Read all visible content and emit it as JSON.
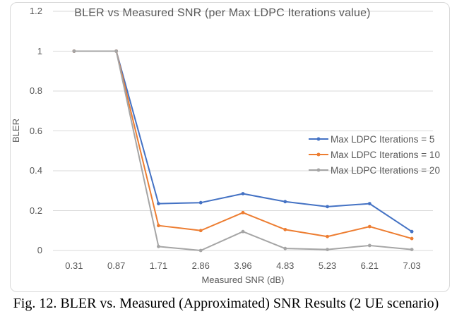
{
  "figure": {
    "caption": "Fig. 12. BLER vs. Measured (Approximated) SNR Results (2 UE scenario)"
  },
  "chart_data": {
    "type": "line",
    "title": "BLER vs Measured SNR (per Max LDPC Iterations value)",
    "xlabel": "Measured SNR (dB)",
    "ylabel": "BLER",
    "categories": [
      "0.31",
      "0.87",
      "1.71",
      "2.86",
      "3.96",
      "4.83",
      "5.23",
      "6.21",
      "7.03"
    ],
    "series": [
      {
        "name": "Max LDPC Iterations = 5",
        "color": "#4472C4",
        "values": [
          1,
          1,
          0.235,
          0.24,
          0.285,
          0.245,
          0.22,
          0.235,
          0.095
        ]
      },
      {
        "name": "Max LDPC Iterations = 10",
        "color": "#ED7D31",
        "values": [
          1,
          1,
          0.125,
          0.1,
          0.19,
          0.105,
          0.07,
          0.12,
          0.06
        ]
      },
      {
        "name": "Max LDPC Iterations = 20",
        "color": "#A5A5A5",
        "values": [
          1,
          1,
          0.02,
          0.0,
          0.095,
          0.01,
          0.005,
          0.025,
          0.005
        ]
      }
    ],
    "ylim": [
      0,
      1.2
    ],
    "ytick_step": 0.2,
    "ytick_labels": [
      "0",
      "0.2",
      "0.4",
      "0.6",
      "0.8",
      "1",
      "1.2"
    ],
    "grid": true,
    "legend_position": "middle-right",
    "colors": {
      "gridline": "#D9D9D9",
      "axis_text": "#595959",
      "chart_border": "#D9D9D9"
    }
  }
}
